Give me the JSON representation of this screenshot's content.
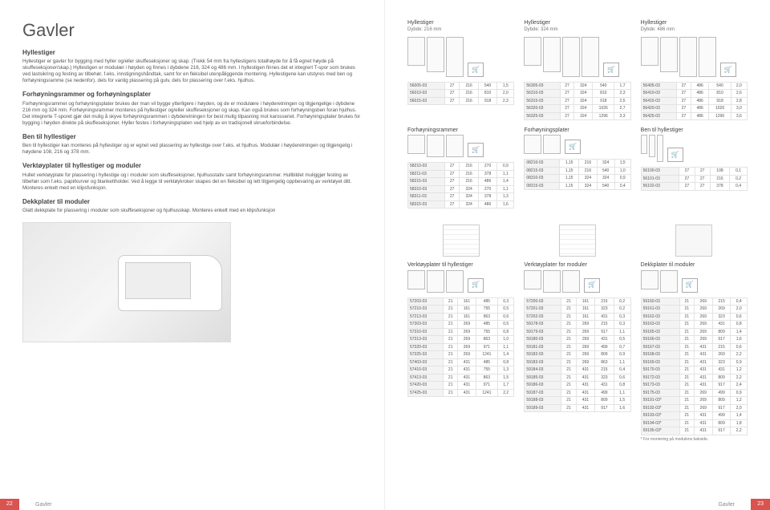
{
  "left": {
    "title": "Gavler",
    "sections": [
      {
        "heading": "Hyllestiger",
        "body": "Hyllestiger er gavler for bygging med hyller og/eller skuffeseksjoner og skap. (Trekk 54 mm fra hyllestigens totalhøyde for å få egnet høyde på skuffeseksjoner/skap.) Hyllestigen er modulær i høyden og finnes i dybdene 216, 324 og 486 mm. I hyllestigen finnes det et integrert T-spor som brukes ved lastsikring og festing av tilbehør, f.eks. innstigningshåndtak, samt for en fleksibel utenpåliggende montering. Hyllestigene kan utstyres med ben og forhøyningsramme (se nedenfor), dels for vanlig plassering på gulv, dels for plassering over f.eks. hjulhus."
      },
      {
        "heading": "Forhøyningsrammer og forhøyningsplater",
        "body": "Forhøyningsrammer og forhøyningsplater brukes der man vil bygge ytterligere i høyden, og de er modulære i høyderetningen og tilgjengelige i dybdene 216 mm og 324 mm. Forhøyningsrammer monteres på hyllestiger og/eller skuffeseksjoner og skap. Kan også brukes som forhøyningsben foran hjulhus. Det integrerte T-sporet gjør det mulig å skyve forhøyningsrammen i dybderetningen for best mulig tilpasning mot karosseriet. Forhøyningsplater brukes for bygging i høyden direkte på skuffeseksjoner. Hyller festes i forhøyningsplaten ved hjelp av en tradisjonell skrueforbindelse."
      },
      {
        "heading": "Ben til hyllestiger",
        "body": "Ben til hyllestiger kan monteres på hyllestiger og er egnet ved plassering av hyllestige over f.eks. et hjulhus. Modulær i høyderetningen og tilgjengelig i høydene 108, 216 og 378 mm."
      },
      {
        "heading": "Verktøyplater til hyllestiger og moduler",
        "body": "Hullet verktøyplate for plassering i hyllestige og i moduler som skuffeseksjoner, hjulhusstativ samt forhøyningsrammer. Hullbildet muliggjør festing av tilbehør som f.eks. papirkurver og blankettholder. Ved å legge til verktøykroker skapes det en fleksibel og lett tilgjengelig oppbevaring av verktøyet ditt. Monteres enkelt med en klipsfunksjon."
      },
      {
        "heading": "Dekkplater til moduler",
        "body": "Glatt dekkplate for plassering i moduler som skuffeseksjoner og hjulhusskap. Monteres enkelt med en klipsfunksjon"
      }
    ],
    "page_num": "22",
    "footer_label": "Gavler"
  },
  "right": {
    "col1": {
      "label": "Hyllestiger",
      "sub": "Dybde: 216 mm",
      "rows": [
        [
          "56005-03",
          "27",
          "216",
          "540",
          "1,5"
        ],
        [
          "56010-03",
          "27",
          "216",
          "810",
          "2,0"
        ],
        [
          "56015-03",
          "27",
          "216",
          "918",
          "2,3"
        ]
      ]
    },
    "col2": {
      "label": "Hyllestiger",
      "sub": "Dybde: 324 mm",
      "rows": [
        [
          "56305-03",
          "27",
          "324",
          "540",
          "1,7"
        ],
        [
          "56310-03",
          "27",
          "324",
          "810",
          "2,3"
        ],
        [
          "56315-03",
          "27",
          "324",
          "918",
          "2,5"
        ],
        [
          "56320-03",
          "27",
          "324",
          "1026",
          "2,7"
        ],
        [
          "56325-03",
          "27",
          "324",
          "1296",
          "3,3"
        ]
      ]
    },
    "col3": {
      "label": "Hyllestiger",
      "sub": "Dybde: 486 mm",
      "rows": [
        [
          "56405-03",
          "27",
          "486",
          "540",
          "2,0"
        ],
        [
          "56410-03",
          "27",
          "486",
          "810",
          "2,6"
        ],
        [
          "56415-03",
          "27",
          "486",
          "918",
          "2,8"
        ],
        [
          "56420-03",
          "27",
          "486",
          "1026",
          "3,0"
        ],
        [
          "56425-03",
          "27",
          "486",
          "1296",
          "3,6"
        ]
      ]
    },
    "mid1": {
      "label": "Forhøyningsrammer",
      "rows": [
        [
          "58210-03",
          "27",
          "216",
          "270",
          "0,9"
        ],
        [
          "58211-03",
          "27",
          "216",
          "378",
          "1,1"
        ],
        [
          "58215-03",
          "27",
          "216",
          "486",
          "1,4"
        ],
        [
          "58310-03",
          "27",
          "324",
          "270",
          "1,1"
        ],
        [
          "58311-03",
          "27",
          "324",
          "378",
          "1,3"
        ],
        [
          "58315-03",
          "27",
          "324",
          "486",
          "1,6"
        ]
      ]
    },
    "mid2": {
      "label": "Forhøyningsplater",
      "rows": [
        [
          "08210-03",
          "1,15",
          "216",
          "324",
          "1,5"
        ],
        [
          "08215-03",
          "1,15",
          "216",
          "540",
          "1,0"
        ],
        [
          "08310-03",
          "1,15",
          "324",
          "324",
          "0,9"
        ],
        [
          "08315-03",
          "1,15",
          "324",
          "540",
          "0,4"
        ]
      ]
    },
    "mid3": {
      "label": "Ben til hyllestiger",
      "rows": [
        [
          "56100-03",
          "27",
          "27",
          "108",
          "0,1"
        ],
        [
          "56101-03",
          "27",
          "27",
          "216",
          "0,2"
        ],
        [
          "56102-03",
          "27",
          "27",
          "378",
          "0,4"
        ]
      ]
    },
    "low1": {
      "label": "Verktøyplater til hyllestiger",
      "rows": [
        [
          "57203-03",
          "21",
          "161",
          "485",
          "0,3"
        ],
        [
          "57210-03",
          "21",
          "161",
          "755",
          "0,5"
        ],
        [
          "57213-03",
          "21",
          "161",
          "863",
          "0,6"
        ],
        [
          "57303-03",
          "21",
          "269",
          "485",
          "0,5"
        ],
        [
          "57310-03",
          "21",
          "269",
          "755",
          "0,8"
        ],
        [
          "57313-03",
          "21",
          "269",
          "863",
          "1,0"
        ],
        [
          "57320-03",
          "21",
          "269",
          "971",
          "1,1"
        ],
        [
          "57325-03",
          "21",
          "269",
          "1241",
          "1,4"
        ],
        [
          "57403-03",
          "21",
          "431",
          "485",
          "0,8"
        ],
        [
          "57410-03",
          "21",
          "431",
          "755",
          "1,3"
        ],
        [
          "57413-03",
          "21",
          "431",
          "863",
          "1,5"
        ],
        [
          "57420-03",
          "21",
          "431",
          "971",
          "1,7"
        ],
        [
          "57425-03",
          "21",
          "431",
          "1241",
          "2,2"
        ]
      ]
    },
    "low2": {
      "label": "Verktøyplater for moduler",
      "rows": [
        [
          "57200-03",
          "21",
          "161",
          "215",
          "0,2"
        ],
        [
          "57201-03",
          "21",
          "161",
          "323",
          "0,2"
        ],
        [
          "57202-03",
          "21",
          "161",
          "431",
          "0,3"
        ],
        [
          "59178-03",
          "21",
          "269",
          "215",
          "0,3"
        ],
        [
          "59179-03",
          "21",
          "269",
          "917",
          "1,1"
        ],
        [
          "59180-03",
          "21",
          "269",
          "431",
          "0,5"
        ],
        [
          "59181-03",
          "21",
          "269",
          "499",
          "0,7"
        ],
        [
          "59182-03",
          "21",
          "269",
          "809",
          "0,9"
        ],
        [
          "59183-03",
          "21",
          "269",
          "863",
          "1,1"
        ],
        [
          "59184-03",
          "21",
          "431",
          "215",
          "0,4"
        ],
        [
          "59185-03",
          "21",
          "431",
          "323",
          "0,6"
        ],
        [
          "59186-03",
          "21",
          "431",
          "431",
          "0,8"
        ],
        [
          "59187-03",
          "21",
          "431",
          "499",
          "1,1"
        ],
        [
          "59188-03",
          "21",
          "431",
          "809",
          "1,5"
        ],
        [
          "59189-03",
          "21",
          "431",
          "917",
          "1,6"
        ]
      ]
    },
    "low3": {
      "label": "Dekkplater til moduler",
      "rows": [
        [
          "59160-03",
          "21",
          "269",
          "215",
          "0,4"
        ],
        [
          "59161-03",
          "21",
          "269",
          "269",
          "2,0"
        ],
        [
          "59162-03",
          "21",
          "269",
          "323",
          "0,6"
        ],
        [
          "59163-03",
          "21",
          "269",
          "431",
          "0,8"
        ],
        [
          "59165-03",
          "21",
          "269",
          "809",
          "1,4"
        ],
        [
          "59166-03",
          "21",
          "269",
          "917",
          "1,6"
        ],
        [
          "59167-03",
          "21",
          "431",
          "215",
          "0,6"
        ],
        [
          "59168-03",
          "21",
          "431",
          "269",
          "2,2"
        ],
        [
          "59169-03",
          "21",
          "431",
          "323",
          "0,9"
        ],
        [
          "59170-03",
          "21",
          "431",
          "431",
          "1,2"
        ],
        [
          "59172-03",
          "21",
          "431",
          "809",
          "2,2"
        ],
        [
          "59173-03",
          "21",
          "431",
          "917",
          "2,4"
        ],
        [
          "59175-03",
          "21",
          "269",
          "499",
          "0,9"
        ],
        [
          "59191-03*",
          "21",
          "269",
          "809",
          "1,2"
        ],
        [
          "59192-03*",
          "21",
          "269",
          "917",
          "2,0"
        ],
        [
          "59193-03*",
          "21",
          "431",
          "499",
          "1,4"
        ],
        [
          "59194-03*",
          "21",
          "431",
          "809",
          "1,8"
        ],
        [
          "59195-03*",
          "21",
          "431",
          "917",
          "2,2"
        ]
      ],
      "footnote": "* For montering på modulens bakside."
    },
    "page_num": "23",
    "footer_label": "Gavler"
  }
}
